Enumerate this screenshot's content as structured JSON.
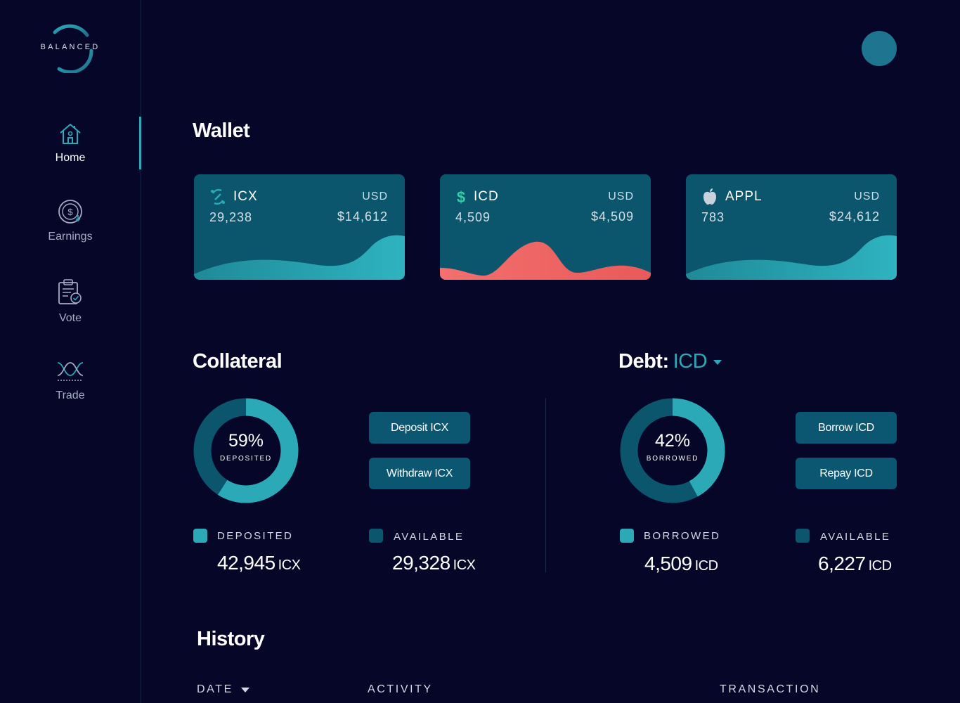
{
  "brand": {
    "name": "BALANCED"
  },
  "nav": {
    "items": [
      {
        "label": "Home",
        "icon": "home-icon",
        "active": true
      },
      {
        "label": "Earnings",
        "icon": "dollar-coin-icon",
        "active": false
      },
      {
        "label": "Vote",
        "icon": "clipboard-check-icon",
        "active": false
      },
      {
        "label": "Trade",
        "icon": "trade-wave-icon",
        "active": false
      }
    ]
  },
  "wallet": {
    "title": "Wallet",
    "cards": [
      {
        "symbol": "ICX",
        "icon": "icx-icon",
        "amount": "29,238",
        "currency": "USD",
        "usd_value": "$14,612",
        "wave_color": "#2ca9b7"
      },
      {
        "symbol": "ICD",
        "icon": "dollar-icon",
        "amount": "4,509",
        "currency": "USD",
        "usd_value": "$4,509",
        "wave_color": "#f06b6b"
      },
      {
        "symbol": "APPL",
        "icon": "apple-icon",
        "amount": "783",
        "currency": "USD",
        "usd_value": "$24,612",
        "wave_color": "#2ca9b7"
      }
    ]
  },
  "collateral": {
    "title": "Collateral",
    "donut": {
      "percent_text": "59%",
      "percent_value": 59,
      "label": "DEPOSITED"
    },
    "buttons": {
      "deposit": "Deposit ICX",
      "withdraw": "Withdraw ICX"
    },
    "legend": [
      {
        "label": "DEPOSITED",
        "value": "42,945",
        "unit": "ICX",
        "color": "#2ca9b7"
      },
      {
        "label": "AVAILABLE",
        "value": "29,328",
        "unit": "ICX",
        "color": "#0b566c"
      }
    ]
  },
  "debt": {
    "title": "Debt:",
    "asset": "ICD",
    "donut": {
      "percent_text": "42%",
      "percent_value": 42,
      "label": "BORROWED"
    },
    "buttons": {
      "borrow": "Borrow ICD",
      "repay": "Repay ICD"
    },
    "legend": [
      {
        "label": "BORROWED",
        "value": "4,509",
        "unit": "ICD",
        "color": "#2ca9b7"
      },
      {
        "label": "AVAILABLE",
        "value": "6,227",
        "unit": "ICD",
        "color": "#0b566c"
      }
    ]
  },
  "history": {
    "title": "History",
    "columns": [
      "DATE",
      "ACTIVITY",
      "TRANSACTION"
    ]
  },
  "colors": {
    "background": "#050628",
    "accent": "#2ca9b7",
    "card": "#0b566c",
    "danger": "#f06b6b",
    "debt_red": "#c0282d"
  }
}
